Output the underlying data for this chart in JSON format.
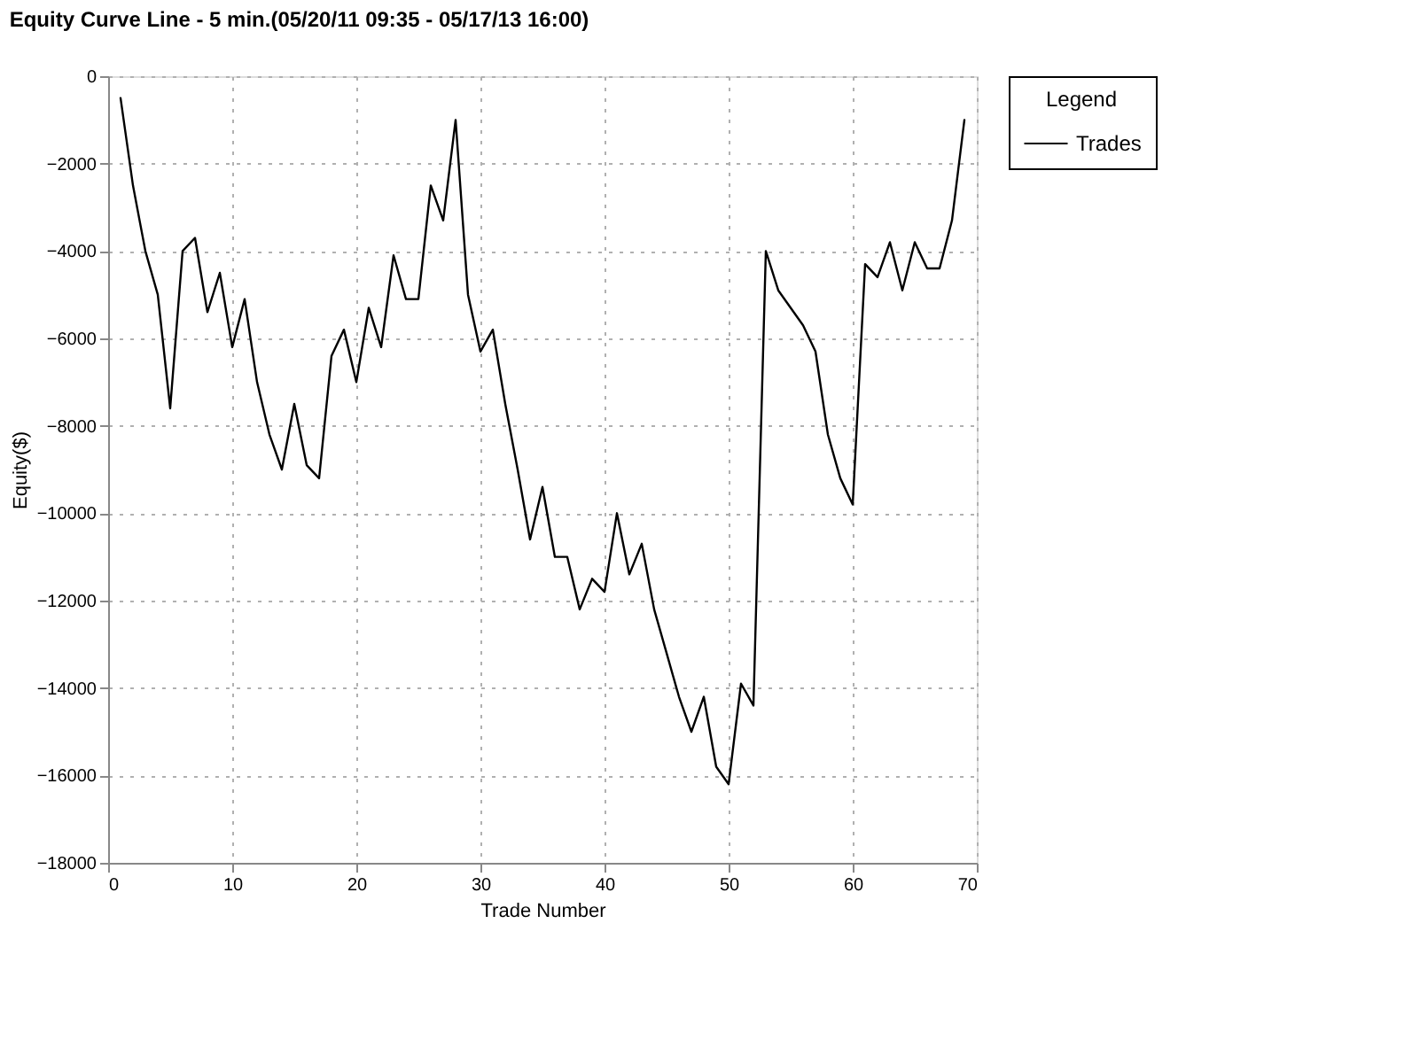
{
  "chart_data": {
    "type": "line",
    "title": "Equity Curve Line - 5 min.(05/20/11 09:35 - 05/17/13 16:00)",
    "xlabel": "Trade Number",
    "ylabel": "Equity($)",
    "legend_title": "Legend",
    "x": [
      1,
      2,
      3,
      4,
      5,
      6,
      7,
      8,
      9,
      10,
      11,
      12,
      13,
      14,
      15,
      16,
      17,
      18,
      19,
      20,
      21,
      22,
      23,
      24,
      25,
      26,
      27,
      28,
      29,
      30,
      31,
      32,
      33,
      34,
      35,
      36,
      37,
      38,
      39,
      40,
      41,
      42,
      43,
      44,
      45,
      46,
      47,
      48,
      49,
      50,
      51,
      52,
      53,
      54,
      55,
      56,
      57,
      58,
      59,
      60,
      61,
      62,
      63,
      64,
      65,
      66,
      67,
      68,
      69
    ],
    "series": [
      {
        "name": "Trades",
        "color": "#000000",
        "values": [
          -500,
          -2500,
          -4000,
          -5000,
          -7600,
          -4000,
          -3700,
          -5400,
          -4500,
          -6200,
          -5100,
          -7000,
          -8200,
          -9000,
          -7500,
          -8900,
          -9200,
          -6400,
          -5800,
          -7000,
          -5300,
          -6200,
          -4100,
          -5100,
          -5100,
          -2500,
          -3300,
          -1000,
          -5000,
          -6300,
          -5800,
          -7500,
          -9000,
          -10600,
          -9400,
          -11000,
          -11000,
          -12200,
          -11500,
          -11800,
          -10000,
          -11400,
          -10700,
          -12200,
          -13200,
          -14200,
          -15000,
          -14200,
          -15800,
          -16200,
          -13900,
          -14400,
          -4000,
          -4900,
          -5300,
          -5700,
          -6300,
          -8200,
          -9200,
          -9800,
          -4300,
          -4600,
          -3800,
          -4900,
          -3800,
          -4400,
          -4400,
          -3300,
          -1000
        ]
      }
    ],
    "xlim": [
      0,
      70
    ],
    "xticks": [
      0,
      10,
      20,
      30,
      40,
      50,
      60,
      70
    ],
    "ylim": [
      -18000,
      0
    ],
    "yticks": [
      -18000,
      -16000,
      -14000,
      -12000,
      -10000,
      -8000,
      -6000,
      -4000,
      -2000,
      0
    ],
    "grid": true,
    "legend": "right",
    "marker": "none",
    "line_style": "solid"
  }
}
